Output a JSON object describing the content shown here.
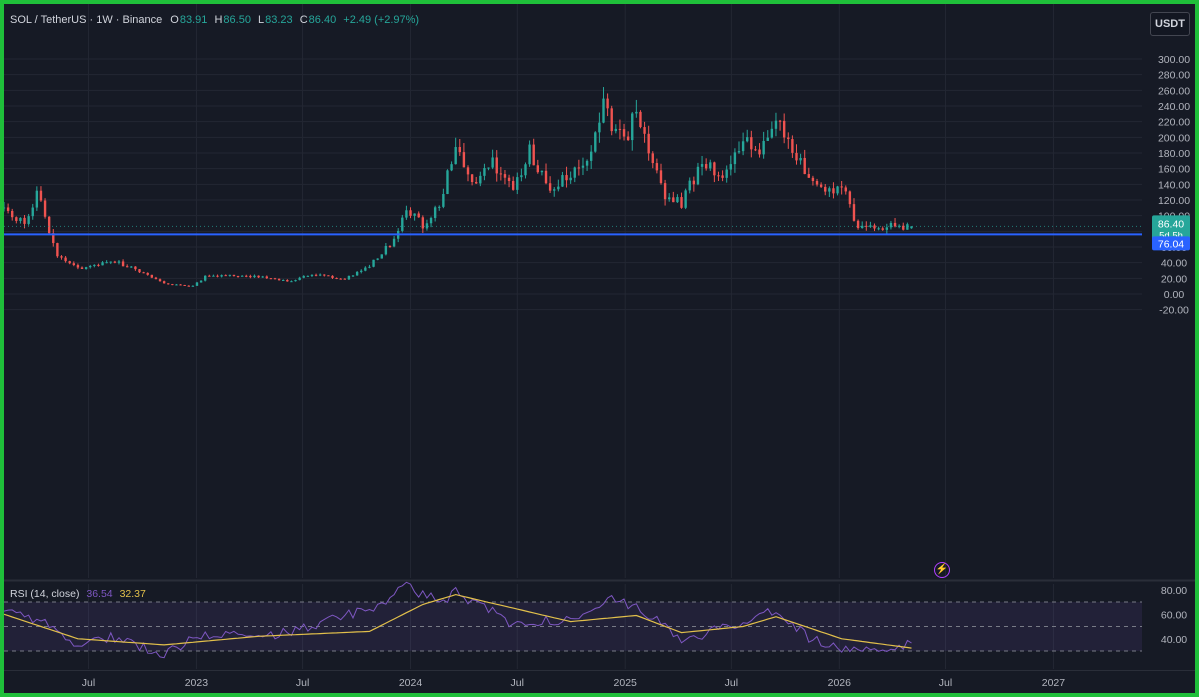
{
  "header": {
    "symbol": "SOL / TetherUS · 1W · Binance",
    "open_label": "O",
    "open": "83.91",
    "high_label": "H",
    "high": "86.50",
    "low_label": "L",
    "low": "83.23",
    "close_label": "C",
    "close": "86.40",
    "change": "+2.49 (+2.97%)"
  },
  "currency_button": "USDT",
  "price_tag": {
    "value": "86.40",
    "countdown": "5d 5h"
  },
  "level_tag": "76.04",
  "rsi": {
    "label": "RSI (14, close)",
    "value": "36.54",
    "ma_value": "32.37"
  },
  "colors": {
    "background": "#161a25",
    "up": "#26a69a",
    "down": "#ef5350",
    "horizontal_line": "#2962ff",
    "rsi_line": "#7e57c2",
    "rsi_ma": "#e2c04b",
    "frame": "#1fbf3a"
  },
  "chart_data": [
    {
      "type": "candlestick",
      "title": "SOL / TetherUS · 1W · Binance",
      "y_ticks": [
        "300.00",
        "280.00",
        "260.00",
        "240.00",
        "220.00",
        "200.00",
        "180.00",
        "160.00",
        "140.00",
        "120.00",
        "100.00",
        "80.00",
        "60.00",
        "40.00",
        "20.00",
        "0.00",
        "-20.00"
      ],
      "ylim": [
        -28,
        320
      ],
      "x_ticks": [
        "Jul",
        "2023",
        "Jul",
        "2024",
        "Jul",
        "2025",
        "Jul",
        "2026",
        "Jul",
        "2027"
      ],
      "x_range": [
        "2022-02-07",
        "2027-06-01"
      ],
      "horizontal_line": 76.04,
      "last_close": 86.4,
      "grid": true,
      "anchors": [
        [
          "2022-02-07",
          110
        ],
        [
          "2022-03-14",
          88
        ],
        [
          "2022-04-04",
          130
        ],
        [
          "2022-04-18",
          98
        ],
        [
          "2022-05-09",
          48
        ],
        [
          "2022-06-13",
          32
        ],
        [
          "2022-08-08",
          43
        ],
        [
          "2022-09-19",
          32
        ],
        [
          "2022-11-07",
          13
        ],
        [
          "2022-12-26",
          10
        ],
        [
          "2023-01-16",
          22
        ],
        [
          "2023-02-20",
          24
        ],
        [
          "2023-04-17",
          22
        ],
        [
          "2023-06-12",
          16
        ],
        [
          "2023-07-17",
          26
        ],
        [
          "2023-09-11",
          19
        ],
        [
          "2023-10-23",
          36
        ],
        [
          "2023-12-04",
          70
        ],
        [
          "2023-12-25",
          112
        ],
        [
          "2024-01-22",
          88
        ],
        [
          "2024-02-19",
          110
        ],
        [
          "2024-03-18",
          190
        ],
        [
          "2024-04-15",
          135
        ],
        [
          "2024-05-20",
          170
        ],
        [
          "2024-06-24",
          133
        ],
        [
          "2024-07-22",
          180
        ],
        [
          "2024-08-19",
          138
        ],
        [
          "2024-09-30",
          150
        ],
        [
          "2024-10-28",
          175
        ],
        [
          "2024-11-25",
          240
        ],
        [
          "2024-12-30",
          190
        ],
        [
          "2025-01-20",
          240
        ],
        [
          "2025-02-17",
          170
        ],
        [
          "2025-03-10",
          125
        ],
        [
          "2025-04-07",
          115
        ],
        [
          "2025-05-12",
          170
        ],
        [
          "2025-06-16",
          145
        ],
        [
          "2025-07-21",
          195
        ],
        [
          "2025-08-18",
          185
        ],
        [
          "2025-09-15",
          235
        ],
        [
          "2025-10-13",
          190
        ],
        [
          "2025-11-10",
          140
        ],
        [
          "2025-12-08",
          128
        ],
        [
          "2026-01-05",
          137
        ],
        [
          "2026-02-02",
          86
        ],
        [
          "2026-02-23",
          84
        ],
        [
          "2026-03-23",
          88
        ],
        [
          "2026-05-04",
          86.4
        ]
      ],
      "last_candle": {
        "open": 83.91,
        "high": 86.5,
        "low": 83.23,
        "close": 86.4
      }
    },
    {
      "type": "line",
      "title": "RSI (14, close)",
      "y_ticks": [
        "80.00",
        "60.00",
        "40.00"
      ],
      "bands": [
        70,
        50,
        30
      ],
      "ylim": [
        25,
        88
      ],
      "series": [
        {
          "name": "RSI",
          "x": [
            "2022-02-07",
            "2022-04-04",
            "2022-06-13",
            "2022-08-08",
            "2022-11-07",
            "2023-01-16",
            "2023-04-17",
            "2023-07-17",
            "2023-10-23",
            "2023-12-25",
            "2024-02-19",
            "2024-03-18",
            "2024-06-24",
            "2024-09-30",
            "2024-11-25",
            "2025-01-20",
            "2025-04-07",
            "2025-06-16",
            "2025-09-15",
            "2025-11-10",
            "2026-02-02",
            "2026-03-23",
            "2026-05-04"
          ],
          "values": [
            62,
            56,
            35,
            42,
            28,
            45,
            40,
            50,
            65,
            82,
            70,
            78,
            52,
            56,
            72,
            68,
            38,
            48,
            65,
            40,
            28,
            31,
            36.54
          ]
        },
        {
          "name": "RSI MA",
          "x": [
            "2022-02-07",
            "2022-06-13",
            "2022-11-07",
            "2023-04-17",
            "2023-10-23",
            "2024-01-22",
            "2024-03-18",
            "2024-06-24",
            "2024-09-30",
            "2025-01-20",
            "2025-04-07",
            "2025-07-21",
            "2025-09-15",
            "2026-01-05",
            "2026-05-04"
          ],
          "values": [
            60,
            40,
            35,
            42,
            46,
            68,
            76,
            65,
            54,
            59,
            45,
            50,
            58,
            40,
            32.37
          ]
        }
      ]
    }
  ]
}
